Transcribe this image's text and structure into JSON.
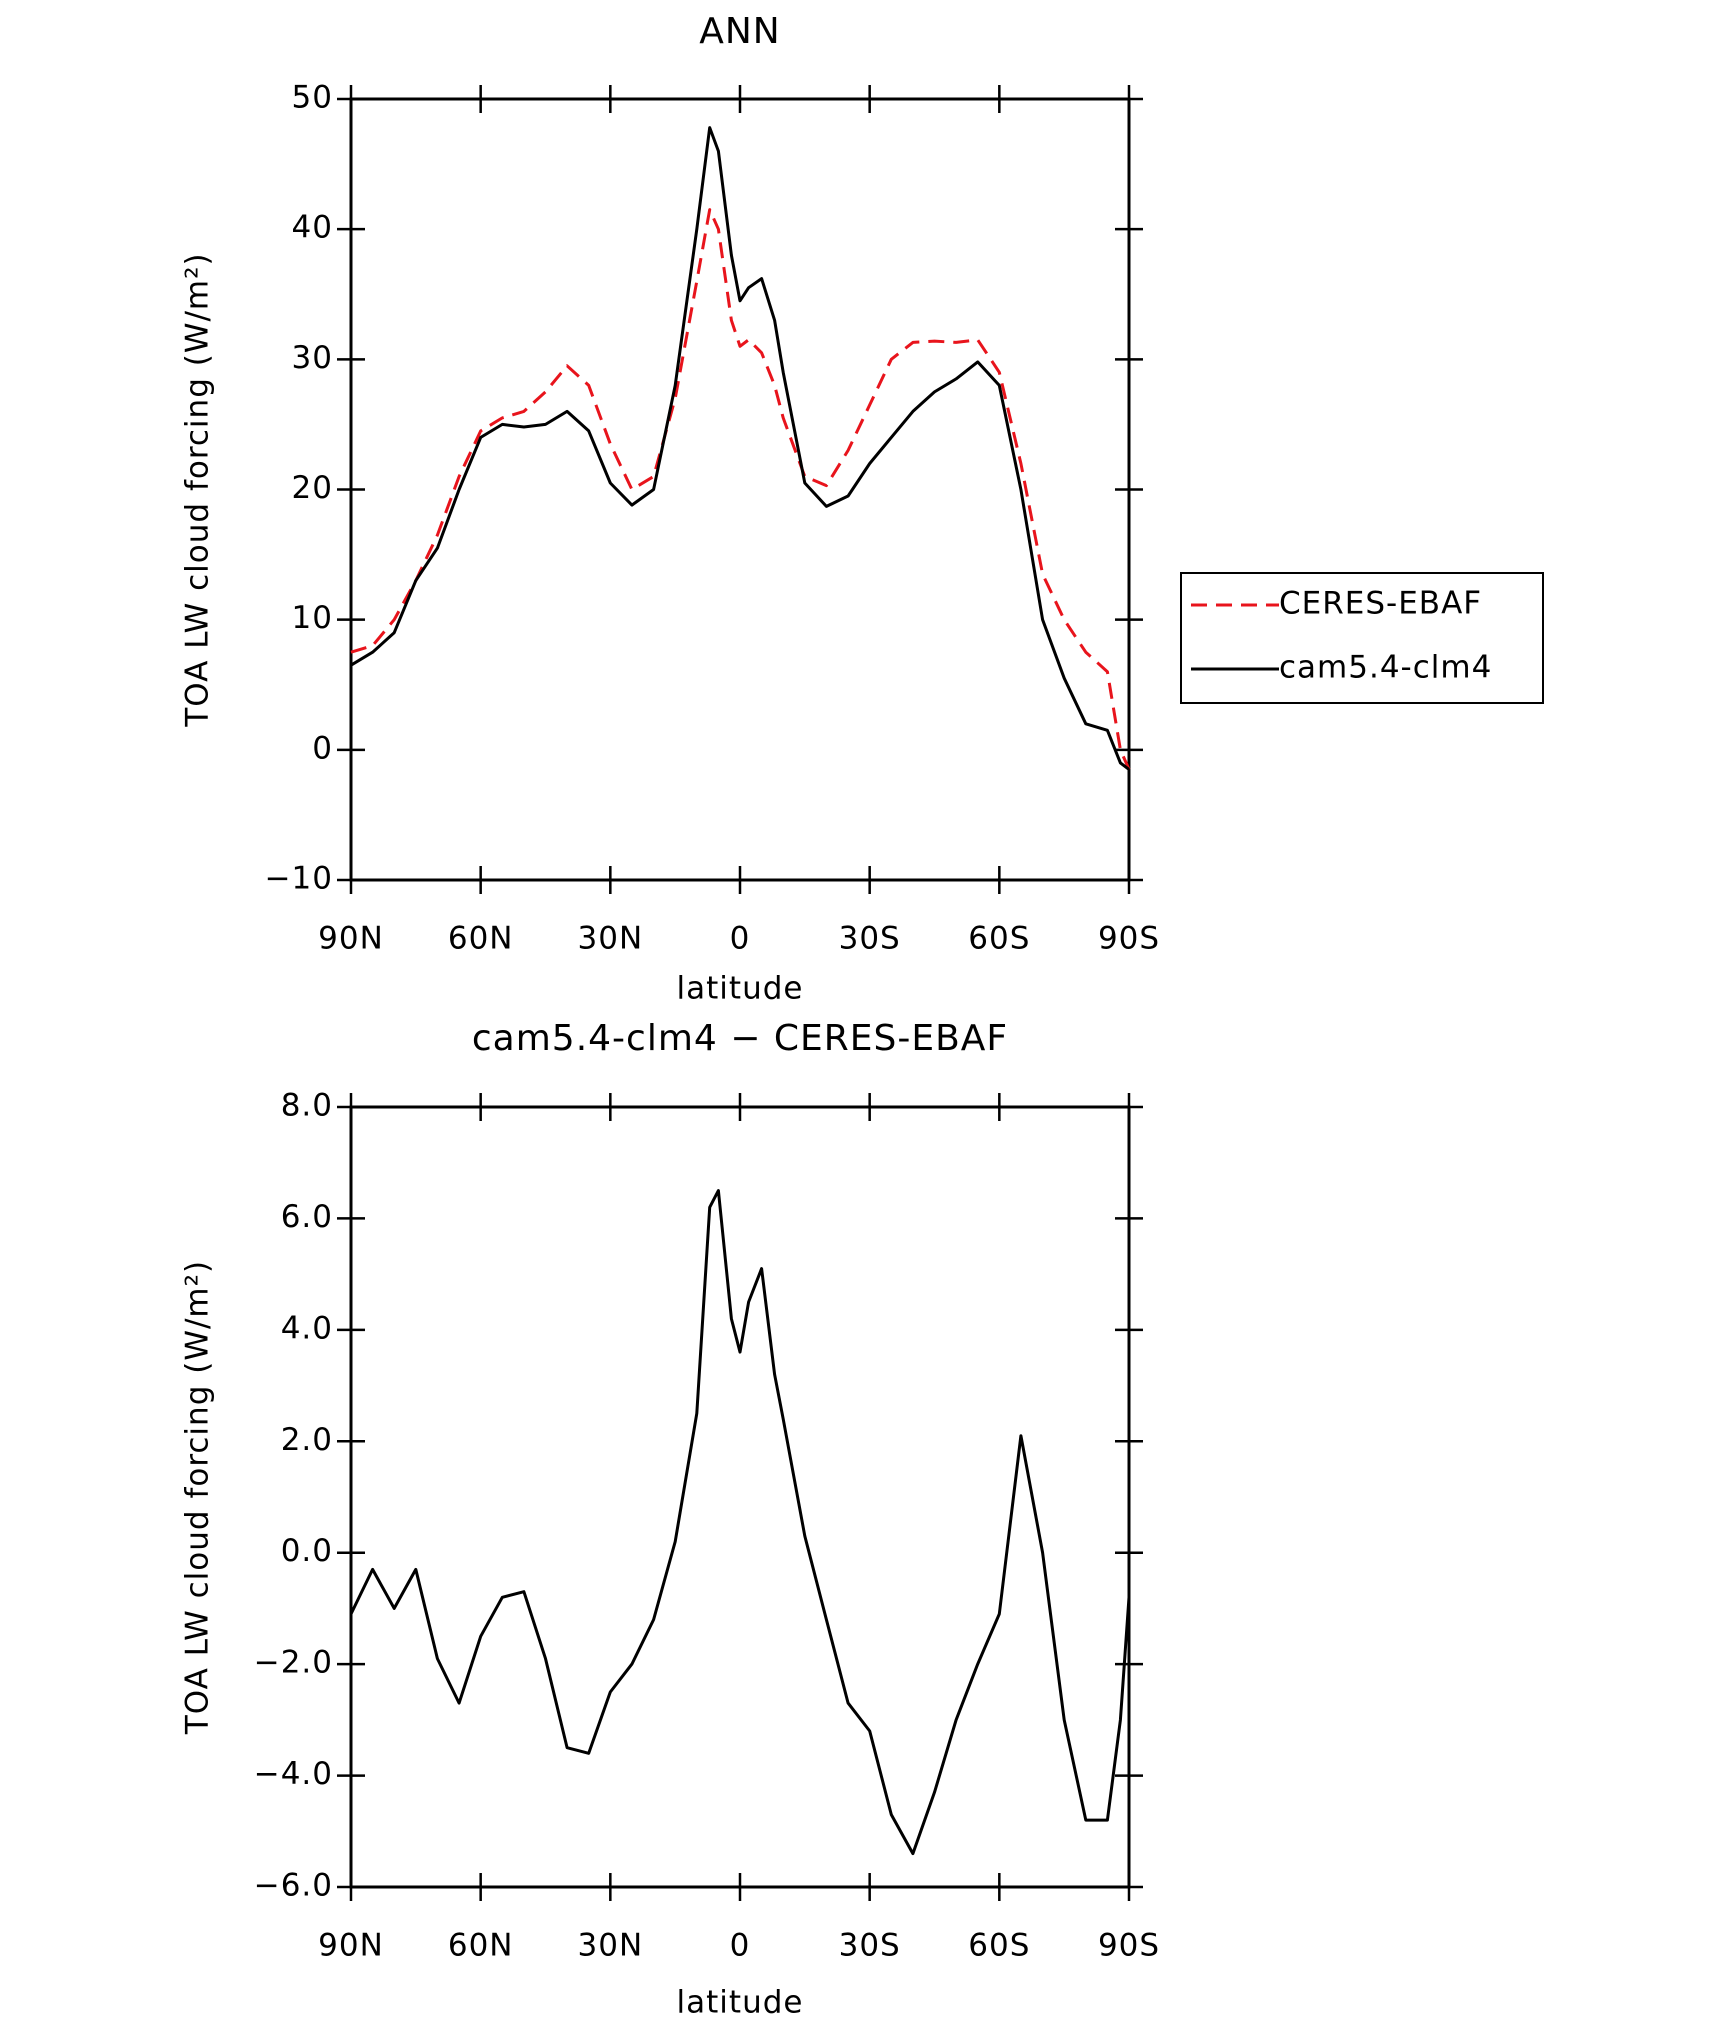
{
  "chart_data": [
    {
      "type": "line",
      "title": "ANN",
      "xlabel": "latitude",
      "ylabel": "TOA LW cloud forcing (W/m²)",
      "x": [
        90,
        85,
        80,
        75,
        70,
        65,
        60,
        55,
        50,
        45,
        40,
        35,
        30,
        25,
        20,
        15,
        10,
        7,
        5,
        2,
        0,
        -2,
        -5,
        -8,
        -10,
        -15,
        -20,
        -25,
        -30,
        -35,
        -40,
        -45,
        -50,
        -55,
        -60,
        -65,
        -70,
        -75,
        -80,
        -85,
        -88,
        -90
      ],
      "xlim": [
        90,
        -90
      ],
      "xticks": [
        {
          "value": 90,
          "label": "90N"
        },
        {
          "value": 60,
          "label": "60N"
        },
        {
          "value": 30,
          "label": "30N"
        },
        0,
        {
          "value": -30,
          "label": "30S"
        },
        {
          "value": -60,
          "label": "60S"
        },
        {
          "value": -90,
          "label": "90S"
        }
      ],
      "ylim": [
        -10,
        50
      ],
      "yticks": [
        {
          "value": -10,
          "label": "−10"
        },
        0,
        10,
        20,
        30,
        40,
        50
      ],
      "legend": "right",
      "series": [
        {
          "name": "CERES-EBAF",
          "color": "#e8141c",
          "linestyle": "dashed",
          "values": [
            7.5,
            8,
            10,
            13,
            16.5,
            21,
            24.5,
            25.5,
            26,
            27.5,
            29.5,
            28,
            23.5,
            20,
            21,
            27,
            36,
            41.5,
            40,
            33,
            31,
            31.5,
            30.5,
            28,
            25.5,
            21,
            20.3,
            23,
            26.5,
            30,
            31.3,
            31.4,
            31.3,
            31.5,
            29,
            22,
            13.5,
            10,
            7.5,
            6,
            0,
            -1.5
          ]
        },
        {
          "name": "cam5.4-clm4",
          "color": "#000000",
          "linestyle": "solid",
          "values": [
            6.5,
            7.5,
            9,
            13,
            15.5,
            20,
            24,
            25,
            24.8,
            25,
            26,
            24.5,
            20.5,
            18.8,
            20,
            28,
            40,
            47.8,
            46,
            38,
            34.5,
            35.5,
            36.2,
            33,
            29,
            20.5,
            18.7,
            19.5,
            22,
            24,
            26,
            27.5,
            28.5,
            29.8,
            28,
            20,
            10,
            5.5,
            2,
            1.5,
            -1,
            -1.5
          ]
        }
      ]
    },
    {
      "type": "line",
      "title": "cam5.4-clm4 − CERES-EBAF",
      "xlabel": "latitude",
      "ylabel": "TOA LW cloud forcing (W/m²)",
      "x": [
        90,
        85,
        80,
        75,
        70,
        65,
        60,
        55,
        50,
        45,
        40,
        35,
        30,
        25,
        20,
        15,
        10,
        7,
        5,
        2,
        0,
        -2,
        -5,
        -8,
        -10,
        -15,
        -20,
        -25,
        -30,
        -35,
        -40,
        -45,
        -50,
        -55,
        -60,
        -65,
        -70,
        -75,
        -80,
        -85,
        -88,
        -90
      ],
      "xlim": [
        90,
        -90
      ],
      "xticks": [
        {
          "value": 90,
          "label": "90N"
        },
        {
          "value": 60,
          "label": "60N"
        },
        {
          "value": 30,
          "label": "30N"
        },
        0,
        {
          "value": -30,
          "label": "30S"
        },
        {
          "value": -60,
          "label": "60S"
        },
        {
          "value": -90,
          "label": "90S"
        }
      ],
      "ylim": [
        -6,
        8
      ],
      "yticks": [
        {
          "value": -6,
          "label": "−6.0"
        },
        {
          "value": -4,
          "label": "−4.0"
        },
        {
          "value": -2,
          "label": "−2.0"
        },
        {
          "value": 0,
          "label": "0.0"
        },
        {
          "value": 2,
          "label": "2.0"
        },
        {
          "value": 4,
          "label": "4.0"
        },
        {
          "value": 6,
          "label": "6.0"
        },
        {
          "value": 8,
          "label": "8.0"
        }
      ],
      "series": [
        {
          "color": "#000000",
          "linestyle": "solid",
          "values": [
            -1.1,
            -0.3,
            -1.0,
            -0.3,
            -1.9,
            -2.7,
            -1.5,
            -0.8,
            -0.7,
            -1.9,
            -3.5,
            -3.6,
            -2.5,
            -2.0,
            -1.2,
            0.2,
            2.5,
            6.2,
            6.5,
            4.2,
            3.6,
            4.5,
            5.1,
            3.2,
            2.4,
            0.3,
            -1.2,
            -2.7,
            -3.2,
            -4.7,
            -5.4,
            -4.3,
            -3.0,
            -2.0,
            -1.1,
            2.1,
            0.0,
            -3.0,
            -4.8,
            -4.8,
            -3.0,
            -0.8
          ]
        }
      ]
    }
  ]
}
